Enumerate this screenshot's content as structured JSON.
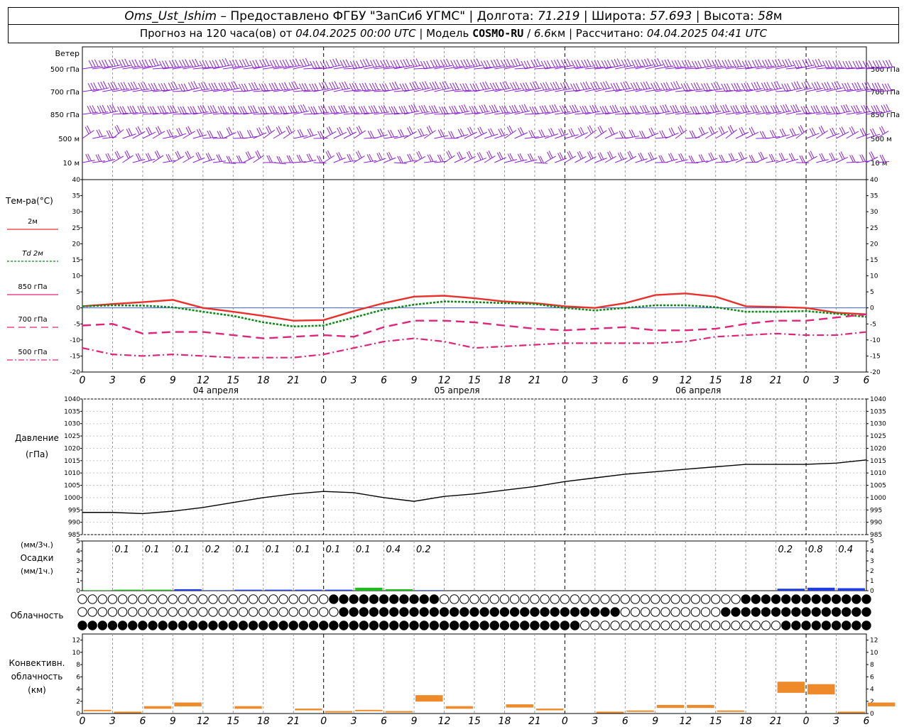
{
  "header": {
    "line1": {
      "station": "Oms_Ust_Ishim",
      "provider": " – Предоставлено ФГБУ \"ЗапСиб УГМС\" | Долгота: ",
      "lon": "71.219",
      "lat_label": " | Широта: ",
      "lat": "57.693",
      "alt_label": " | Высота: ",
      "alt": "58",
      "alt_unit": "м"
    },
    "line2": {
      "prefix": "Прогноз на 120 часа(ов) от ",
      "run": "04.04.2025 00:00 UTC",
      "model_label": "  | Модель ",
      "model": "COSMO-RU",
      "model_res_sep": " / ",
      "model_res": "6.6",
      "model_res_unit": "км",
      "calc_label": " | Рассчитано: ",
      "calc": "04.04.2025 04:41 UTC"
    }
  },
  "wind": {
    "title": "Ветер",
    "levels": [
      "500 гПа",
      "700 гПа",
      "850 гПа",
      "500 м",
      "10 м"
    ],
    "color": "#8b1fd6"
  },
  "temperature": {
    "title": "Тем-ра(°C)",
    "legend": [
      {
        "label": "2м",
        "color": "#e8312a",
        "dash": ""
      },
      {
        "label": "Td 2м",
        "color": "#0e8a17",
        "dash": "3,2"
      },
      {
        "label": "850 гПа",
        "color": "#e0247a",
        "dash": ""
      },
      {
        "label": "700 гПа",
        "color": "#e0247a",
        "dash": "10,6"
      },
      {
        "label": "500 гПа",
        "color": "#e0247a",
        "dash": "8,3,2,3"
      }
    ],
    "yticks": [
      "40",
      "35",
      "30",
      "25",
      "20",
      "15",
      "10",
      "5",
      "0",
      "-5",
      "-10",
      "-15",
      "-20"
    ]
  },
  "time_axis": {
    "hour_labels": [
      "0",
      "3",
      "6",
      "9",
      "12",
      "15",
      "18",
      "21",
      "0",
      "3",
      "6",
      "9",
      "12",
      "15",
      "18",
      "21",
      "0",
      "3",
      "6",
      "9",
      "12",
      "15",
      "18",
      "21",
      "0",
      "3",
      "6"
    ],
    "day_labels": [
      "04 апреля",
      "05 апреля",
      "06 апреля"
    ]
  },
  "pressure": {
    "title1": "Давление",
    "title2": "(гПа)",
    "yticks": [
      "1040",
      "1035",
      "1030",
      "1025",
      "1020",
      "1015",
      "1010",
      "1005",
      "1000",
      "995",
      "990",
      "985"
    ]
  },
  "precip": {
    "title1": "(мм/3ч.)",
    "title2": "Осадки",
    "title3": "(мм/1ч.)",
    "yticks": [
      "5",
      "4",
      "3",
      "2",
      "1",
      "0"
    ],
    "labels_3h": [
      "0.1",
      "0.1",
      "0.1",
      "0.2",
      "0.1",
      "0.1",
      "0.1",
      "0.1",
      "0.1",
      "0.4",
      "0.2",
      "0.2",
      "0.8",
      "0.4"
    ]
  },
  "clouds": {
    "title": "Облачность"
  },
  "convective": {
    "title1": "Конвективн.",
    "title2": "облачность",
    "title3": "(км)",
    "yticks": [
      "12",
      "10",
      "8",
      "6",
      "4",
      "2",
      "0"
    ],
    "color": "#ef8a2b"
  },
  "chart_data": [
    {
      "type": "line",
      "title": "Тем-ра(°C)",
      "x_hours": [
        0,
        3,
        6,
        9,
        12,
        15,
        18,
        21,
        24,
        27,
        30,
        33,
        36,
        39,
        42,
        45,
        48,
        51,
        54,
        57,
        60,
        63,
        66,
        69,
        72,
        75,
        78
      ],
      "ylim": [
        -20,
        40
      ],
      "series": [
        {
          "name": "2м",
          "values": [
            0.5,
            1.2,
            1.8,
            2.5,
            0,
            -1.2,
            -2.5,
            -4,
            -3.8,
            -1,
            1.5,
            3.5,
            3.8,
            3,
            2,
            1.5,
            0.5,
            0,
            1.5,
            4,
            4.5,
            3.5,
            0.5,
            0.3,
            0,
            -1.5,
            -2
          ]
        },
        {
          "name": "Td 2м",
          "values": [
            0.5,
            0.8,
            0.7,
            0.2,
            -1.2,
            -2.5,
            -4.5,
            -5.8,
            -5.5,
            -3,
            -0.5,
            1,
            2,
            1.8,
            1.5,
            1.2,
            0,
            -0.8,
            0,
            0.8,
            0.8,
            0.2,
            -1.2,
            -1.2,
            -1,
            -1.8,
            -2.8
          ]
        },
        {
          "name": "850 гПа",
          "values": [
            -5.5,
            -5,
            -8,
            -7.5,
            -7.5,
            -8.5,
            -9.5,
            -9,
            -8.5,
            -9,
            -6,
            -4,
            -4,
            -4.5,
            -5.5,
            -6.5,
            -7,
            -6.5,
            -6,
            -7,
            -7,
            -6.5,
            -5,
            -4,
            -4,
            -3,
            -2
          ]
        },
        {
          "name": "700 гПа",
          "values": [
            -6,
            -5,
            -8.5,
            -7.5,
            -7.5,
            -8,
            -9,
            -9,
            -8.5,
            -9,
            -6,
            -4,
            -4,
            -5,
            -6,
            -6.5,
            -7,
            -6.5,
            -6.5,
            -7,
            -7,
            -6.5,
            -5,
            -4,
            -4,
            -2.5,
            -2.5
          ]
        },
        {
          "name": "500 гПа",
          "values": [
            -12.5,
            -14.5,
            -15,
            -14.5,
            -15,
            -15.5,
            -15.5,
            -15.5,
            -14.5,
            -12.5,
            -10.5,
            -9.5,
            -10.5,
            -12.5,
            -12,
            -11.5,
            -11,
            -11,
            -11,
            -11,
            -10.5,
            -9,
            -8.5,
            -8,
            -8.5,
            -8.5,
            -7.5
          ]
        }
      ]
    },
    {
      "type": "line",
      "title": "Давление",
      "x_hours": [
        0,
        3,
        6,
        9,
        12,
        15,
        18,
        21,
        24,
        27,
        30,
        33,
        36,
        39,
        42,
        45,
        48,
        51,
        54,
        57,
        60,
        63,
        66,
        69,
        72,
        75,
        78
      ],
      "ylim": [
        985,
        1040
      ],
      "series": [
        {
          "name": "",
          "values": [
            994,
            994,
            993.5,
            994.5,
            996,
            998,
            1000,
            1001.5,
            1002.5,
            1002,
            1000,
            998.5,
            1000.5,
            1001.5,
            1003,
            1004.5,
            1006.5,
            1008,
            1009.5,
            1010.5,
            1011.5,
            1012.5,
            1013.5,
            1013.5,
            1013.5,
            1014,
            1015.3
          ]
        }
      ]
    },
    {
      "type": "bar",
      "title": "Осадки",
      "x_hours": [
        3,
        6,
        9,
        12,
        15,
        18,
        21,
        24,
        27,
        30,
        33,
        36,
        72,
        75,
        78
      ],
      "ylim": [
        0,
        5
      ],
      "series": [
        {
          "name": "мм/1ч",
          "values": [
            0.05,
            0.1,
            0.1,
            0.15,
            0.05,
            0.1,
            0.1,
            0.1,
            0.1,
            0.3,
            0.15,
            0.05,
            0.2,
            0.3,
            0.25
          ]
        }
      ]
    },
    {
      "type": "bar",
      "title": "Конвективн. облачность",
      "x_hours": [
        0,
        3,
        6,
        9,
        12,
        15,
        18,
        21,
        24,
        27,
        30,
        33,
        36,
        39,
        42,
        45,
        48,
        51,
        54,
        57,
        60,
        63,
        66,
        69,
        72,
        75,
        78
      ],
      "ylim": [
        0,
        13
      ],
      "series": [
        {
          "name": "км",
          "values": [
            0.6,
            0.3,
            1.2,
            1.8,
            0,
            1.2,
            0,
            0.8,
            0.4,
            0.6,
            0.4,
            3,
            1.2,
            0,
            1.5,
            0.8,
            0,
            0.3,
            0.5,
            1.4,
            1.4,
            0.5,
            0,
            5.2,
            4.8,
            0.3,
            1.8
          ]
        }
      ]
    }
  ]
}
